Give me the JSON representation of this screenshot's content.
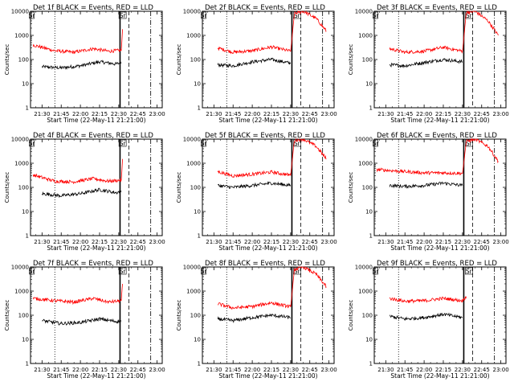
{
  "figure": {
    "xlabel": "Start Time (22-May-11 21:21:00)",
    "ylabel": "Counts/sec",
    "x_ticks": [
      "21:30",
      "21:45",
      "22:00",
      "22:15",
      "22:30",
      "22:45",
      "23:00"
    ],
    "y_ticks": [
      "1",
      "10",
      "100",
      "1000",
      "10000"
    ]
  },
  "chart_data": [
    {
      "type": "line",
      "title": "Det 1f BLACK = Events, RED = LLD",
      "xlabel": "Start Time (22-May-11 21:21:00)",
      "ylabel": "Counts/sec",
      "x_range": [
        "21:21",
        "23:04"
      ],
      "ylim": [
        1,
        10000
      ],
      "y_scale": "log",
      "series": [
        {
          "name": "Events",
          "color": "#000000",
          "x": [
            "21:30",
            "21:45",
            "22:00",
            "22:15",
            "22:28",
            "22:32"
          ],
          "values": [
            50,
            45,
            55,
            80,
            65,
            75
          ]
        },
        {
          "name": "LLD",
          "color": "#ff0000",
          "x": [
            "21:23",
            "21:40",
            "21:55",
            "22:10",
            "22:22",
            "22:32",
            "22:33"
          ],
          "values": [
            400,
            230,
            200,
            280,
            220,
            240,
            1800
          ]
        }
      ],
      "markers": [
        {
          "label": "Sr",
          "x": "21:22"
        },
        {
          "label": "Sr",
          "x": "22:33"
        }
      ]
    },
    {
      "type": "line",
      "title": "Det 2f BLACK = Events, RED = LLD",
      "xlabel": "Start Time (22-May-11 21:21:00)",
      "ylabel": "Counts/sec",
      "x_range": [
        "21:21",
        "23:04"
      ],
      "ylim": [
        1,
        10000
      ],
      "y_scale": "log",
      "series": [
        {
          "name": "Events",
          "color": "#000000",
          "x": [
            "21:33",
            "21:45",
            "22:00",
            "22:15",
            "22:30"
          ],
          "values": [
            60,
            55,
            80,
            100,
            70
          ]
        },
        {
          "name": "LLD",
          "color": "#ff0000",
          "x": [
            "21:33",
            "21:45",
            "22:00",
            "22:15",
            "22:30",
            "22:33",
            "22:40",
            "22:50",
            "22:58"
          ],
          "values": [
            300,
            200,
            230,
            330,
            220,
            8000,
            10000,
            5000,
            1500
          ]
        }
      ],
      "markers": [
        {
          "label": "Sr",
          "x": "21:22"
        },
        {
          "label": "Sr",
          "x": "22:35"
        }
      ]
    },
    {
      "type": "line",
      "title": "Det 3f BLACK = Events, RED = LLD",
      "xlabel": "Start Time (22-May-11 21:21:00)",
      "ylabel": "Counts/sec",
      "x_range": [
        "21:21",
        "23:04"
      ],
      "ylim": [
        1,
        10000
      ],
      "y_scale": "log",
      "series": [
        {
          "name": "Events",
          "color": "#000000",
          "x": [
            "21:33",
            "21:45",
            "22:00",
            "22:15",
            "22:30"
          ],
          "values": [
            60,
            55,
            75,
            100,
            80
          ]
        },
        {
          "name": "LLD",
          "color": "#ff0000",
          "x": [
            "21:33",
            "21:45",
            "22:00",
            "22:15",
            "22:30",
            "22:33",
            "22:40",
            "22:50",
            "22:58"
          ],
          "values": [
            280,
            200,
            220,
            320,
            220,
            9000,
            10000,
            4000,
            1000
          ]
        }
      ],
      "markers": [
        {
          "label": "Sr",
          "x": "21:22"
        },
        {
          "label": "Sr",
          "x": "22:35"
        }
      ]
    },
    {
      "type": "line",
      "title": "Det 4f BLACK = Events, RED = LLD",
      "xlabel": "Start Time (22-May-11 21:21:00)",
      "ylabel": "Counts/sec",
      "x_range": [
        "21:21",
        "23:04"
      ],
      "ylim": [
        1,
        10000
      ],
      "y_scale": "log",
      "series": [
        {
          "name": "Events",
          "color": "#000000",
          "x": [
            "21:30",
            "21:45",
            "22:00",
            "22:15",
            "22:28",
            "22:32"
          ],
          "values": [
            55,
            45,
            55,
            80,
            60,
            70
          ]
        },
        {
          "name": "LLD",
          "color": "#ff0000",
          "x": [
            "21:23",
            "21:40",
            "21:55",
            "22:10",
            "22:22",
            "22:32",
            "22:33"
          ],
          "values": [
            330,
            180,
            170,
            230,
            180,
            200,
            1500
          ]
        }
      ],
      "markers": [
        {
          "label": "Sr",
          "x": "21:22"
        },
        {
          "label": "Sr",
          "x": "22:33"
        }
      ]
    },
    {
      "type": "line",
      "title": "Det 5f BLACK = Events, RED = LLD",
      "xlabel": "Start Time (22-May-11 21:21:00)",
      "ylabel": "Counts/sec",
      "x_range": [
        "21:21",
        "23:04"
      ],
      "ylim": [
        1,
        10000
      ],
      "y_scale": "log",
      "series": [
        {
          "name": "Events",
          "color": "#000000",
          "x": [
            "21:33",
            "21:45",
            "22:00",
            "22:15",
            "22:30"
          ],
          "values": [
            120,
            100,
            120,
            150,
            120
          ]
        },
        {
          "name": "LLD",
          "color": "#ff0000",
          "x": [
            "21:33",
            "21:45",
            "22:00",
            "22:15",
            "22:30",
            "22:33",
            "22:40",
            "22:50",
            "22:58"
          ],
          "values": [
            450,
            300,
            350,
            430,
            320,
            9000,
            10000,
            5000,
            1500
          ]
        }
      ],
      "markers": [
        {
          "label": "Sr",
          "x": "21:22"
        },
        {
          "label": "Sr",
          "x": "22:35"
        }
      ]
    },
    {
      "type": "line",
      "title": "Det 6f BLACK = Events, RED = LLD",
      "xlabel": "Start Time (22-May-11 21:21:00)",
      "ylabel": "Counts/sec",
      "x_range": [
        "21:21",
        "23:04"
      ],
      "ylim": [
        1,
        10000
      ],
      "y_scale": "log",
      "series": [
        {
          "name": "Events",
          "color": "#000000",
          "x": [
            "21:33",
            "21:45",
            "22:00",
            "22:15",
            "22:30"
          ],
          "values": [
            120,
            110,
            120,
            150,
            120
          ]
        },
        {
          "name": "LLD",
          "color": "#ff0000",
          "x": [
            "21:23",
            "21:45",
            "22:00",
            "22:15",
            "22:30",
            "22:33",
            "22:40",
            "22:50",
            "22:58"
          ],
          "values": [
            550,
            450,
            400,
            400,
            380,
            8000,
            10000,
            5000,
            1200
          ]
        }
      ],
      "markers": [
        {
          "label": "Sr",
          "x": "21:22"
        },
        {
          "label": "Sr",
          "x": "22:35"
        }
      ]
    },
    {
      "type": "line",
      "title": "Det 7f BLACK = Events, RED = LLD",
      "xlabel": "Start Time (22-May-11 21:21:00)",
      "ylabel": "Counts/sec",
      "x_range": [
        "21:21",
        "23:04"
      ],
      "ylim": [
        1,
        10000
      ],
      "y_scale": "log",
      "series": [
        {
          "name": "Events",
          "color": "#000000",
          "x": [
            "21:30",
            "21:45",
            "22:00",
            "22:15",
            "22:28",
            "22:32"
          ],
          "values": [
            60,
            45,
            50,
            70,
            55,
            60
          ]
        },
        {
          "name": "LLD",
          "color": "#ff0000",
          "x": [
            "21:23",
            "21:40",
            "21:55",
            "22:10",
            "22:22",
            "22:32",
            "22:33"
          ],
          "values": [
            500,
            400,
            350,
            500,
            350,
            400,
            2000
          ]
        }
      ],
      "markers": [
        {
          "label": "Sr",
          "x": "21:22"
        },
        {
          "label": "Sr",
          "x": "22:33"
        }
      ]
    },
    {
      "type": "line",
      "title": "Det 8f BLACK = Events, RED = LLD",
      "xlabel": "Start Time (22-May-11 21:21:00)",
      "ylabel": "Counts/sec",
      "x_range": [
        "21:21",
        "23:04"
      ],
      "ylim": [
        1,
        10000
      ],
      "y_scale": "log",
      "series": [
        {
          "name": "Events",
          "color": "#000000",
          "x": [
            "21:33",
            "21:45",
            "22:00",
            "22:15",
            "22:30"
          ],
          "values": [
            70,
            60,
            80,
            100,
            80
          ]
        },
        {
          "name": "LLD",
          "color": "#ff0000",
          "x": [
            "21:33",
            "21:45",
            "22:00",
            "22:15",
            "22:30",
            "22:33",
            "22:40",
            "22:50",
            "22:58"
          ],
          "values": [
            300,
            200,
            230,
            330,
            220,
            8000,
            10000,
            5000,
            1500
          ]
        }
      ],
      "markers": [
        {
          "label": "Sr",
          "x": "21:22"
        },
        {
          "label": "Sr",
          "x": "22:35"
        }
      ]
    },
    {
      "type": "line",
      "title": "Det 9f BLACK = Events, RED = LLD",
      "xlabel": "Start Time (22-May-11 21:21:00)",
      "ylabel": "Counts/sec",
      "x_range": [
        "21:21",
        "23:04"
      ],
      "ylim": [
        1,
        10000
      ],
      "y_scale": "log",
      "series": [
        {
          "name": "Events",
          "color": "#000000",
          "x": [
            "21:33",
            "21:45",
            "22:00",
            "22:15",
            "22:30"
          ],
          "values": [
            90,
            70,
            80,
            110,
            80
          ]
        },
        {
          "name": "LLD",
          "color": "#ff0000",
          "x": [
            "21:33",
            "21:45",
            "22:00",
            "22:15",
            "22:30",
            "22:33"
          ],
          "values": [
            500,
            380,
            400,
            500,
            400,
            600
          ]
        }
      ],
      "markers": [
        {
          "label": "Sr",
          "x": "21:22"
        },
        {
          "label": "Sr",
          "x": "22:35"
        }
      ]
    }
  ]
}
